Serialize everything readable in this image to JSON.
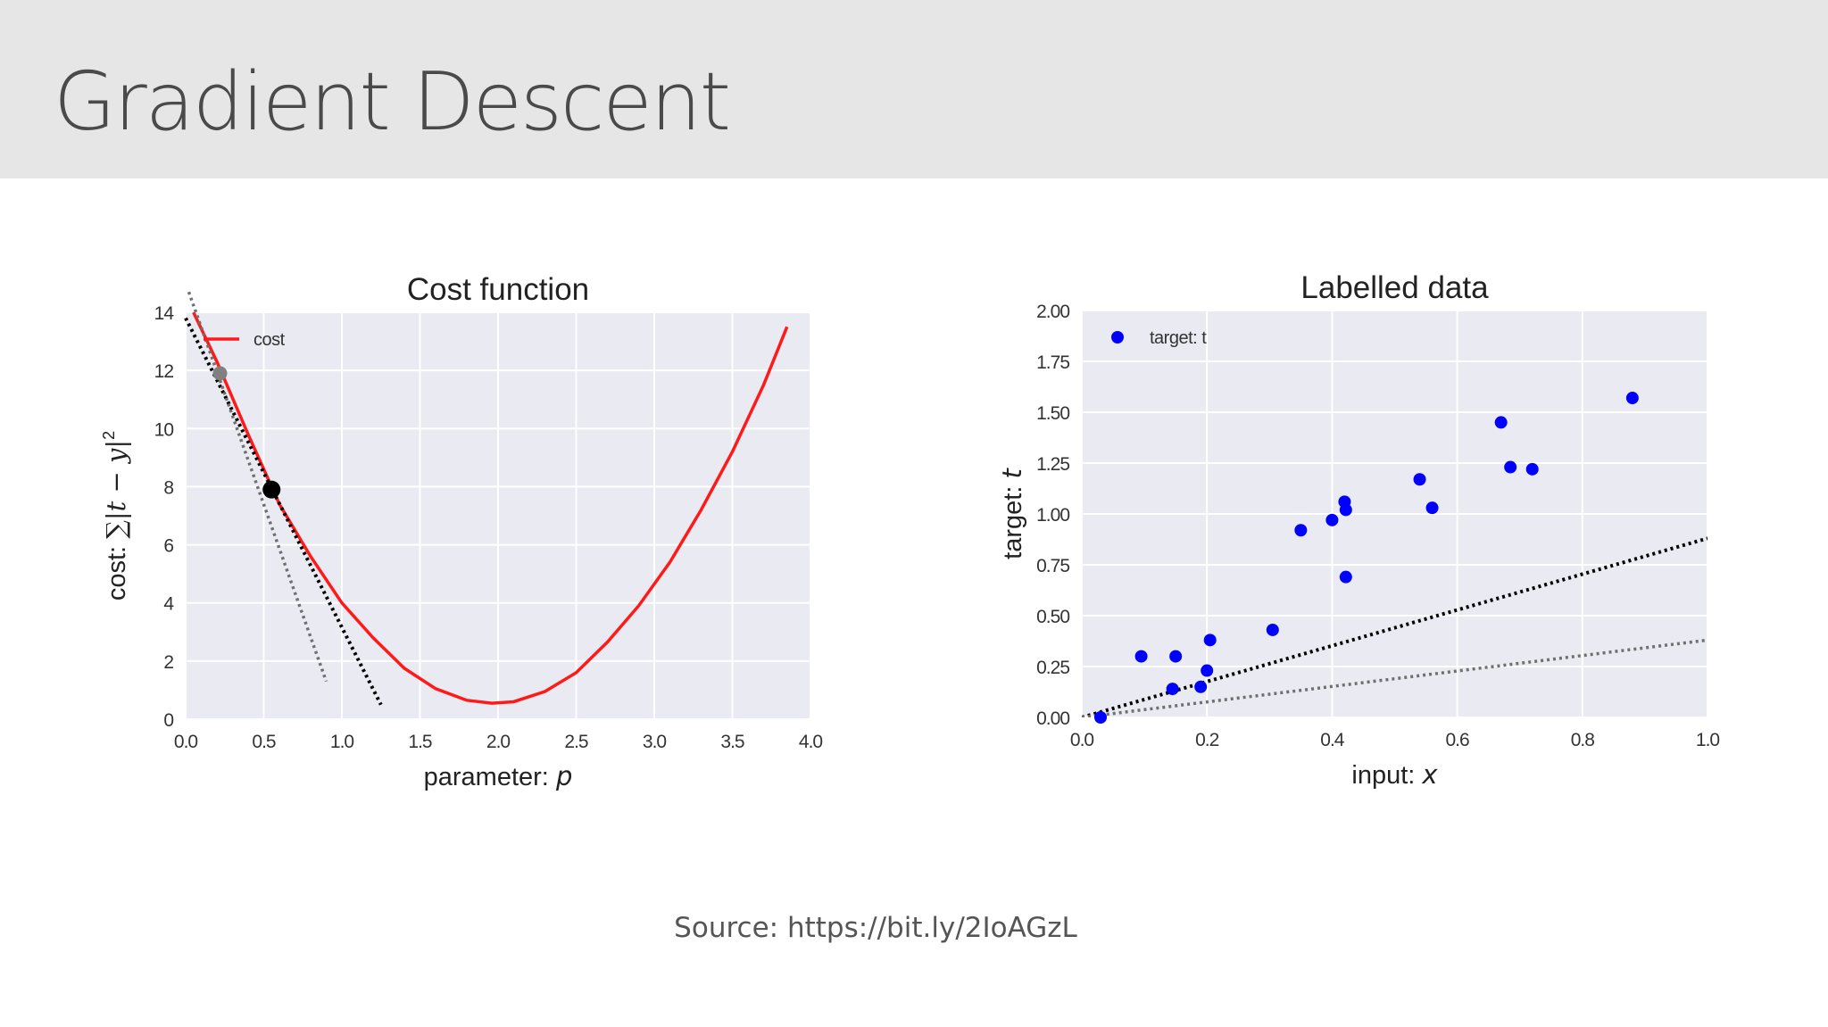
{
  "slide": {
    "title": "Gradient Descent",
    "source": "Source: https://bit.ly/2IoAGzL"
  },
  "colors": {
    "header_bg": "#e6e6e6",
    "plot_bg": "#eaeaf2",
    "cost_line": "#ff1a1a",
    "points": "#0000ff",
    "tangent_black": "#000000",
    "tangent_gray": "#707070"
  },
  "chart_data": [
    {
      "type": "line",
      "title": "Cost function",
      "xlabel": "parameter: p",
      "xlabel_plain": "parameter: ",
      "xlabel_var": "p",
      "ylabel": "cost: ∑|t − y|²",
      "ylabel_plain": "cost: ",
      "ylabel_math": "∑|t − y|",
      "ylabel_sup": "2",
      "xlim": [
        0,
        4
      ],
      "ylim": [
        0,
        14
      ],
      "xticks": [
        "0.0",
        "0.5",
        "1.0",
        "1.5",
        "2.0",
        "2.5",
        "3.0",
        "3.5",
        "4.0"
      ],
      "yticks": [
        "0",
        "2",
        "4",
        "6",
        "8",
        "10",
        "12",
        "14"
      ],
      "grid": true,
      "legend": {
        "placement": "top-left",
        "entries": [
          "cost"
        ]
      },
      "series": [
        {
          "name": "cost",
          "x": [
            0.05,
            0.2,
            0.4,
            0.6,
            0.8,
            1.0,
            1.2,
            1.4,
            1.6,
            1.8,
            1.96,
            2.1,
            2.3,
            2.5,
            2.7,
            2.9,
            3.1,
            3.3,
            3.5,
            3.7,
            3.85
          ],
          "y": [
            14.0,
            12.3,
            9.8,
            7.4,
            5.6,
            4.0,
            2.8,
            1.75,
            1.05,
            0.65,
            0.55,
            0.6,
            0.95,
            1.6,
            2.65,
            3.9,
            5.4,
            7.2,
            9.2,
            11.5,
            13.5
          ]
        }
      ],
      "highlight_points": [
        {
          "x": 0.22,
          "y": 11.9,
          "color": "#808080"
        },
        {
          "x": 0.55,
          "y": 7.9,
          "color": "#000000"
        }
      ],
      "tangent_lines": [
        {
          "x": [
            0.0,
            1.25
          ],
          "y": [
            13.8,
            0.5
          ],
          "color": "#000000"
        },
        {
          "x": [
            0.02,
            0.9
          ],
          "y": [
            14.7,
            1.3
          ],
          "color": "#707070"
        }
      ]
    },
    {
      "type": "scatter",
      "title": "Labelled data",
      "xlabel": "input: x",
      "xlabel_plain": "input: ",
      "xlabel_var": "x",
      "ylabel": "target: t",
      "ylabel_plain": "target: ",
      "ylabel_var": "t",
      "xlim": [
        0,
        1
      ],
      "ylim": [
        0,
        2
      ],
      "xticks": [
        "0.0",
        "0.2",
        "0.4",
        "0.6",
        "0.8",
        "1.0"
      ],
      "yticks": [
        "0.00",
        "0.25",
        "0.50",
        "0.75",
        "1.00",
        "1.25",
        "1.50",
        "1.75",
        "2.00"
      ],
      "grid": true,
      "legend": {
        "placement": "top-left",
        "entries": [
          "target: t"
        ]
      },
      "series": [
        {
          "name": "target: t",
          "x": [
            0.03,
            0.095,
            0.145,
            0.15,
            0.19,
            0.2,
            0.205,
            0.305,
            0.35,
            0.4,
            0.42,
            0.422,
            0.422,
            0.54,
            0.56,
            0.67,
            0.685,
            0.72,
            0.88
          ],
          "y": [
            0.0,
            0.3,
            0.14,
            0.3,
            0.15,
            0.23,
            0.38,
            0.43,
            0.92,
            0.97,
            1.06,
            1.02,
            0.69,
            1.17,
            1.03,
            1.45,
            1.23,
            1.22,
            1.57
          ]
        }
      ],
      "fit_lines": [
        {
          "x": [
            0.0,
            1.0
          ],
          "y": [
            0.0,
            0.88
          ],
          "color": "#000000"
        },
        {
          "x": [
            0.0,
            1.0
          ],
          "y": [
            0.0,
            0.38
          ],
          "color": "#707070"
        }
      ]
    }
  ]
}
